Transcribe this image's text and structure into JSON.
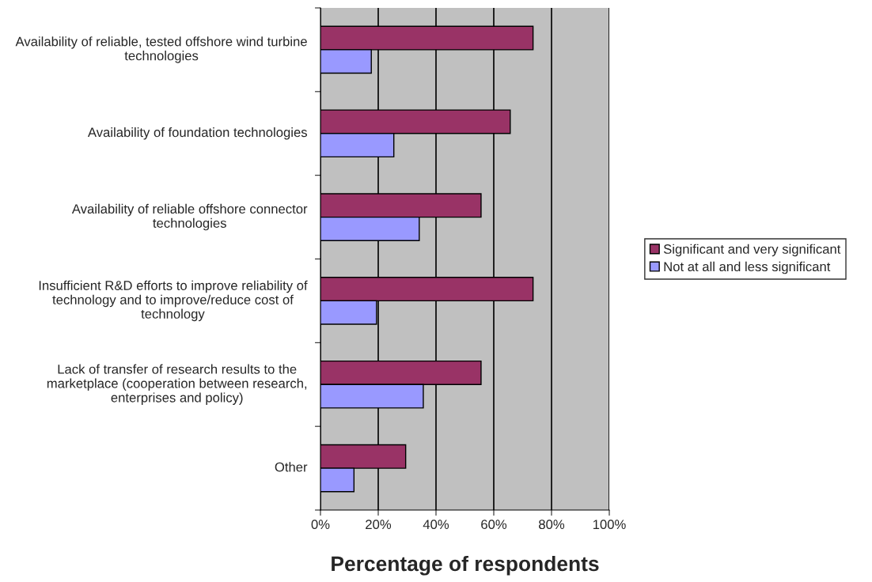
{
  "chart_data": {
    "type": "bar",
    "orientation": "horizontal",
    "xlabel": "Percentage of respondents",
    "categories": [
      "Availability of reliable, tested offshore wind turbine technologies",
      "Availability of foundation technologies",
      "Availability of reliable offshore connector technologies",
      "Insufficient R&D efforts to improve reliability of technology and to improve/reduce cost of technology",
      "Lack of transfer of research results to the marketplace (cooperation between research, enterprises and policy)",
      "Other"
    ],
    "series": [
      {
        "name": "Significant and very significant",
        "color": "#993366",
        "values": [
          73.6,
          65.7,
          55.6,
          73.6,
          55.6,
          29.5
        ]
      },
      {
        "name": "Not at all and less significant",
        "color": "#9999ff",
        "values": [
          17.6,
          25.4,
          34.2,
          19.4,
          35.6,
          11.6
        ]
      }
    ],
    "xlim": [
      0,
      100
    ],
    "xticks": [
      {
        "value": 0,
        "label": "0%"
      },
      {
        "value": 20,
        "label": "20%"
      },
      {
        "value": 40,
        "label": "40%"
      },
      {
        "value": 60,
        "label": "60%"
      },
      {
        "value": 80,
        "label": "80%"
      },
      {
        "value": 100,
        "label": "100%"
      }
    ],
    "grid": "x",
    "legend": "right"
  }
}
